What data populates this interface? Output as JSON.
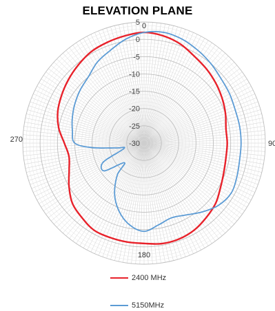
{
  "chart_data": {
    "type": "polar-line",
    "title": "ELEVATION PLANE",
    "radial_axis": {
      "min": -30,
      "max": 5,
      "major_ticks": [
        5,
        0,
        -5,
        -10,
        -15,
        -20,
        -25,
        -30
      ]
    },
    "angular_axis": {
      "labels": [
        "0",
        "90",
        "180",
        "270"
      ]
    },
    "grid": true,
    "legend_placement": "bottom",
    "series": [
      {
        "name": "2400 MHz",
        "color": "#e8212a",
        "points": [
          {
            "angle": 0,
            "value": 2
          },
          {
            "angle": 10,
            "value": 1.5
          },
          {
            "angle": 20,
            "value": 0.5
          },
          {
            "angle": 30,
            "value": -1
          },
          {
            "angle": 40,
            "value": -2
          },
          {
            "angle": 50,
            "value": -3
          },
          {
            "angle": 60,
            "value": -4
          },
          {
            "angle": 70,
            "value": -5
          },
          {
            "angle": 80,
            "value": -6
          },
          {
            "angle": 90,
            "value": -6
          },
          {
            "angle": 100,
            "value": -6
          },
          {
            "angle": 110,
            "value": -5.5
          },
          {
            "angle": 120,
            "value": -4.5
          },
          {
            "angle": 130,
            "value": -3
          },
          {
            "angle": 140,
            "value": -2
          },
          {
            "angle": 150,
            "value": -1
          },
          {
            "angle": 160,
            "value": -0.5
          },
          {
            "angle": 170,
            "value": -0.5
          },
          {
            "angle": 180,
            "value": -1
          },
          {
            "angle": 190,
            "value": -1
          },
          {
            "angle": 200,
            "value": -1
          },
          {
            "angle": 210,
            "value": -1
          },
          {
            "angle": 220,
            "value": -2
          },
          {
            "angle": 230,
            "value": -3
          },
          {
            "angle": 240,
            "value": -5
          },
          {
            "angle": 250,
            "value": -7
          },
          {
            "angle": 260,
            "value": -8
          },
          {
            "angle": 270,
            "value": -7
          },
          {
            "angle": 280,
            "value": -5
          },
          {
            "angle": 290,
            "value": -3.5
          },
          {
            "angle": 300,
            "value": -2.5
          },
          {
            "angle": 310,
            "value": -1.5
          },
          {
            "angle": 320,
            "value": -0.5
          },
          {
            "angle": 330,
            "value": 0.5
          },
          {
            "angle": 340,
            "value": 1
          },
          {
            "angle": 350,
            "value": 1.5
          }
        ]
      },
      {
        "name": "5150MHz",
        "color": "#5b9bd5",
        "points": [
          {
            "angle": 0,
            "value": 2
          },
          {
            "angle": 10,
            "value": 2.5
          },
          {
            "angle": 20,
            "value": 2
          },
          {
            "angle": 30,
            "value": 1
          },
          {
            "angle": 40,
            "value": 0
          },
          {
            "angle": 50,
            "value": -1
          },
          {
            "angle": 60,
            "value": -1.5
          },
          {
            "angle": 70,
            "value": -2
          },
          {
            "angle": 80,
            "value": -2
          },
          {
            "angle": 90,
            "value": -2
          },
          {
            "angle": 100,
            "value": -2
          },
          {
            "angle": 110,
            "value": -1.5
          },
          {
            "angle": 120,
            "value": -1
          },
          {
            "angle": 130,
            "value": -2
          },
          {
            "angle": 140,
            "value": -4
          },
          {
            "angle": 150,
            "value": -6
          },
          {
            "angle": 160,
            "value": -7
          },
          {
            "angle": 170,
            "value": -6
          },
          {
            "angle": 180,
            "value": -4.5
          },
          {
            "angle": 190,
            "value": -6
          },
          {
            "angle": 200,
            "value": -9
          },
          {
            "angle": 210,
            "value": -13
          },
          {
            "angle": 220,
            "value": -18
          },
          {
            "angle": 225,
            "value": -22
          },
          {
            "angle": 235,
            "value": -16
          },
          {
            "angle": 245,
            "value": -17
          },
          {
            "angle": 255,
            "value": -24
          },
          {
            "angle": 260,
            "value": -22
          },
          {
            "angle": 265,
            "value": -15
          },
          {
            "angle": 270,
            "value": -10
          },
          {
            "angle": 280,
            "value": -9
          },
          {
            "angle": 290,
            "value": -8
          },
          {
            "angle": 300,
            "value": -7
          },
          {
            "angle": 310,
            "value": -6
          },
          {
            "angle": 320,
            "value": -5
          },
          {
            "angle": 330,
            "value": -3
          },
          {
            "angle": 340,
            "value": -1.5
          },
          {
            "angle": 350,
            "value": 0.5
          }
        ]
      }
    ]
  }
}
